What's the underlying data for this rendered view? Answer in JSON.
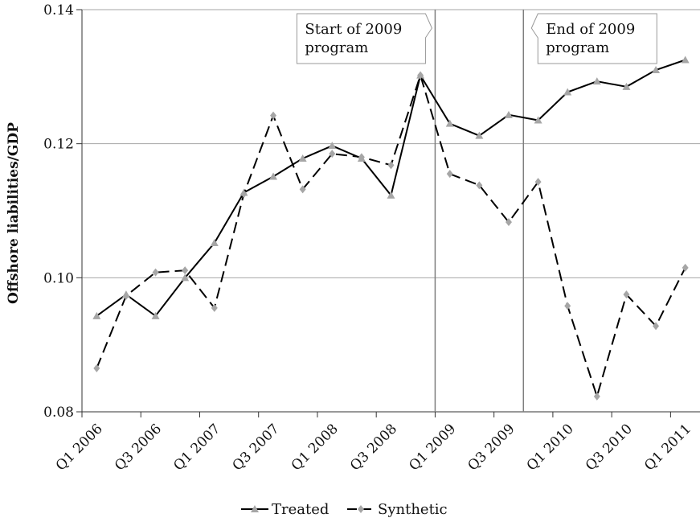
{
  "chart_data": {
    "type": "line",
    "title": "",
    "xlabel": "",
    "ylabel": "Offshore liabilities/GDP",
    "ylim": [
      0.08,
      0.14
    ],
    "yticks": [
      "0.08",
      "0.10",
      "0.12",
      "0.14"
    ],
    "ytick_values": [
      0.08,
      0.1,
      0.12,
      0.14
    ],
    "grid": "horizontal",
    "legend": "bottom",
    "x": [
      "Q1 2006",
      "Q2 2006",
      "Q3 2006",
      "Q4 2006",
      "Q1 2007",
      "Q2 2007",
      "Q3 2007",
      "Q4 2007",
      "Q1 2008",
      "Q2 2008",
      "Q3 2008",
      "Q4 2008",
      "Q1 2009",
      "Q2 2009",
      "Q3 2009",
      "Q4 2009",
      "Q1 2010",
      "Q2 2010",
      "Q3 2010",
      "Q4 2010",
      "Q1 2011"
    ],
    "xtick_labels": [
      "Q1 2006",
      "Q3 2006",
      "Q1 2007",
      "Q3 2007",
      "Q1 2008",
      "Q3 2008",
      "Q1 2009",
      "Q3 2009",
      "Q1 2010",
      "Q3 2010",
      "Q1 2011"
    ],
    "series": [
      {
        "name": "Treated",
        "style": "solid",
        "marker": "triangle",
        "values": [
          0.0943,
          0.0975,
          0.0943,
          0.1,
          0.1052,
          0.1127,
          0.1151,
          0.1178,
          0.1197,
          0.1178,
          0.1123,
          0.1302,
          0.123,
          0.1212,
          0.1243,
          0.1235,
          0.1277,
          0.1293,
          0.1285,
          0.131,
          0.1325
        ]
      },
      {
        "name": "Synthetic",
        "style": "dashed",
        "marker": "diamond",
        "values": [
          0.0865,
          0.0973,
          0.1008,
          0.1011,
          0.0955,
          0.1125,
          0.1242,
          0.1132,
          0.1185,
          0.118,
          0.1168,
          0.1302,
          0.1155,
          0.1138,
          0.1083,
          0.1143,
          0.0958,
          0.0823,
          0.0975,
          0.0928,
          0.1015
        ]
      }
    ],
    "annotations": [
      {
        "text_line1": "Start of 2009",
        "text_line2": "program",
        "at_category": "Q4 2008",
        "offset": 0.5
      },
      {
        "text_line1": "End of 2009",
        "text_line2": "program",
        "at_category": "Q3 2009",
        "offset": 0.5
      }
    ],
    "colors": {
      "line": "#000000",
      "marker": "#a6a6a6",
      "grid": "#a6a6a6",
      "vline": "#7f7f7f"
    }
  }
}
